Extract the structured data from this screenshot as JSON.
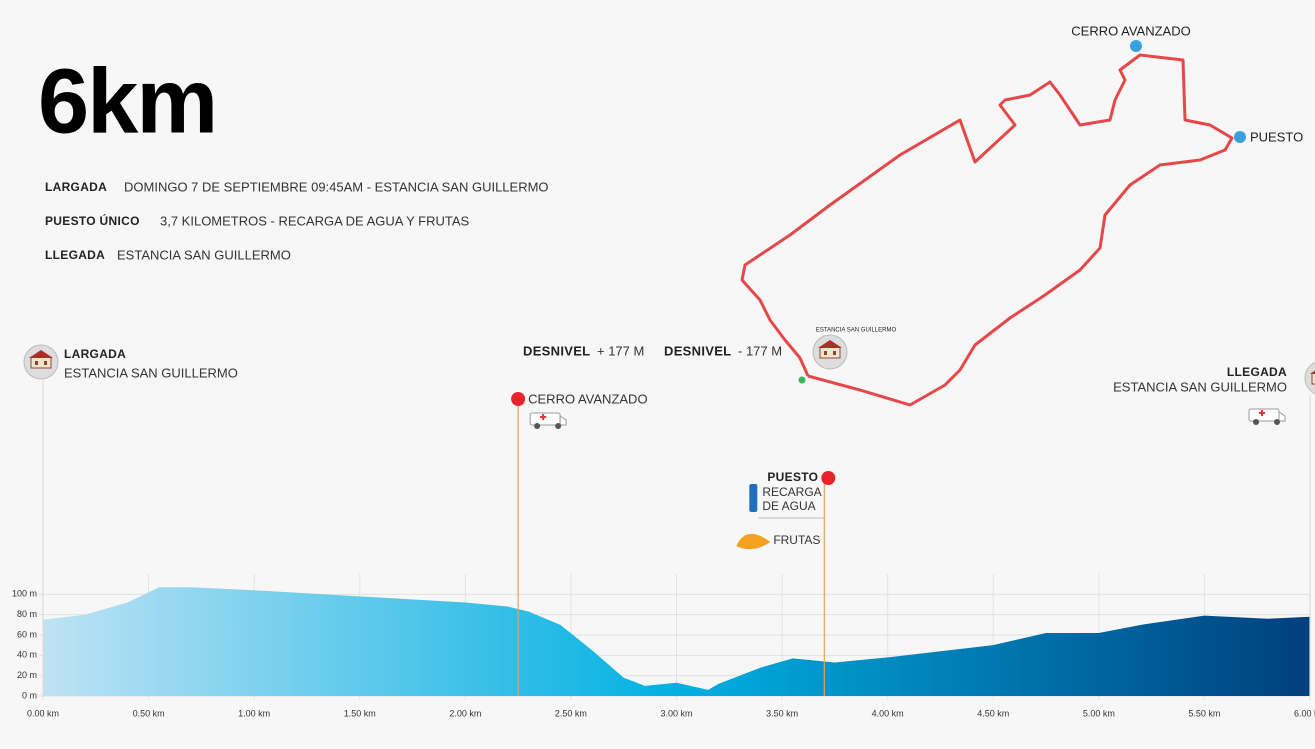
{
  "title": "6km",
  "details": [
    {
      "label": "LARGADA",
      "text": "DOMINGO 7 DE SEPTIEMBRE 09:45AM - ESTANCIA SAN GUILLERMO"
    },
    {
      "label": "PUESTO ÚNICO",
      "text": "3,7 KILOMETROS - RECARGA DE AGUA Y FRUTAS"
    },
    {
      "label": "LLEGADA",
      "text": "ESTANCIA SAN GUILLERMO"
    }
  ],
  "route_map": {
    "summit": "CERRO AVANZADO",
    "aid_station": "PUESTO",
    "base": "ESTANCIA SAN GUILLERMO"
  },
  "elevation_change": [
    {
      "label": "DESNIVEL",
      "value": "+ 177 M"
    },
    {
      "label": "DESNIVEL",
      "value": "- 177 M"
    }
  ],
  "chart_data": {
    "type": "area",
    "x": [
      0,
      0.2,
      0.4,
      0.55,
      0.7,
      1.0,
      1.5,
      2.0,
      2.2,
      2.3,
      2.45,
      2.6,
      2.75,
      2.85,
      3.0,
      3.15,
      3.2,
      3.4,
      3.55,
      3.75,
      4.0,
      4.5,
      4.75,
      5.0,
      5.2,
      5.5,
      5.8,
      6.0
    ],
    "values": [
      75,
      80,
      92,
      107,
      107,
      104,
      98,
      92,
      88,
      83,
      70,
      45,
      18,
      10,
      13,
      6,
      12,
      28,
      37,
      33,
      38,
      50,
      62,
      62,
      70,
      79,
      76,
      78
    ],
    "colors": [
      "#bfe2f4",
      "#00b1e2",
      "#003f7d"
    ],
    "xlim": [
      0,
      6
    ],
    "ylim": [
      0,
      120
    ],
    "xticks": [
      {
        "value": 0,
        "label": "0.00 km"
      },
      {
        "value": 0.5,
        "label": "0.50 km"
      },
      {
        "value": 1,
        "label": "1.00 km"
      },
      {
        "value": 1.5,
        "label": "1.50 km"
      },
      {
        "value": 2,
        "label": "2.00 km"
      },
      {
        "value": 2.5,
        "label": "2.50 km"
      },
      {
        "value": 3,
        "label": "3.00 km"
      },
      {
        "value": 3.5,
        "label": "3.50 km"
      },
      {
        "value": 4,
        "label": "4.00 km"
      },
      {
        "value": 4.5,
        "label": "4.50 km"
      },
      {
        "value": 5,
        "label": "5.00 km"
      },
      {
        "value": 5.5,
        "label": "5.50 km"
      },
      {
        "value": 6,
        "label": "6.00 km"
      }
    ],
    "yticks": [
      {
        "value": 0,
        "label": "0 m"
      },
      {
        "value": 20,
        "label": "20 m"
      },
      {
        "value": 40,
        "label": "40 m"
      },
      {
        "value": 60,
        "label": "60 m"
      },
      {
        "value": 80,
        "label": "80 m"
      },
      {
        "value": 100,
        "label": "100 m"
      }
    ],
    "grid": true,
    "annotations": [
      {
        "x": 0,
        "title": "LARGADA",
        "subtitle": "ESTANCIA SAN GUILLERMO"
      },
      {
        "x": 2.25,
        "title": "CERRO AVANZADO"
      },
      {
        "x": 3.7,
        "title": "PUESTO",
        "lines": [
          "RECARGA",
          "DE AGUA",
          "FRUTAS"
        ]
      },
      {
        "x": 6,
        "title": "LLEGADA",
        "subtitle": "ESTANCIA SAN GUILLERMO"
      }
    ]
  }
}
